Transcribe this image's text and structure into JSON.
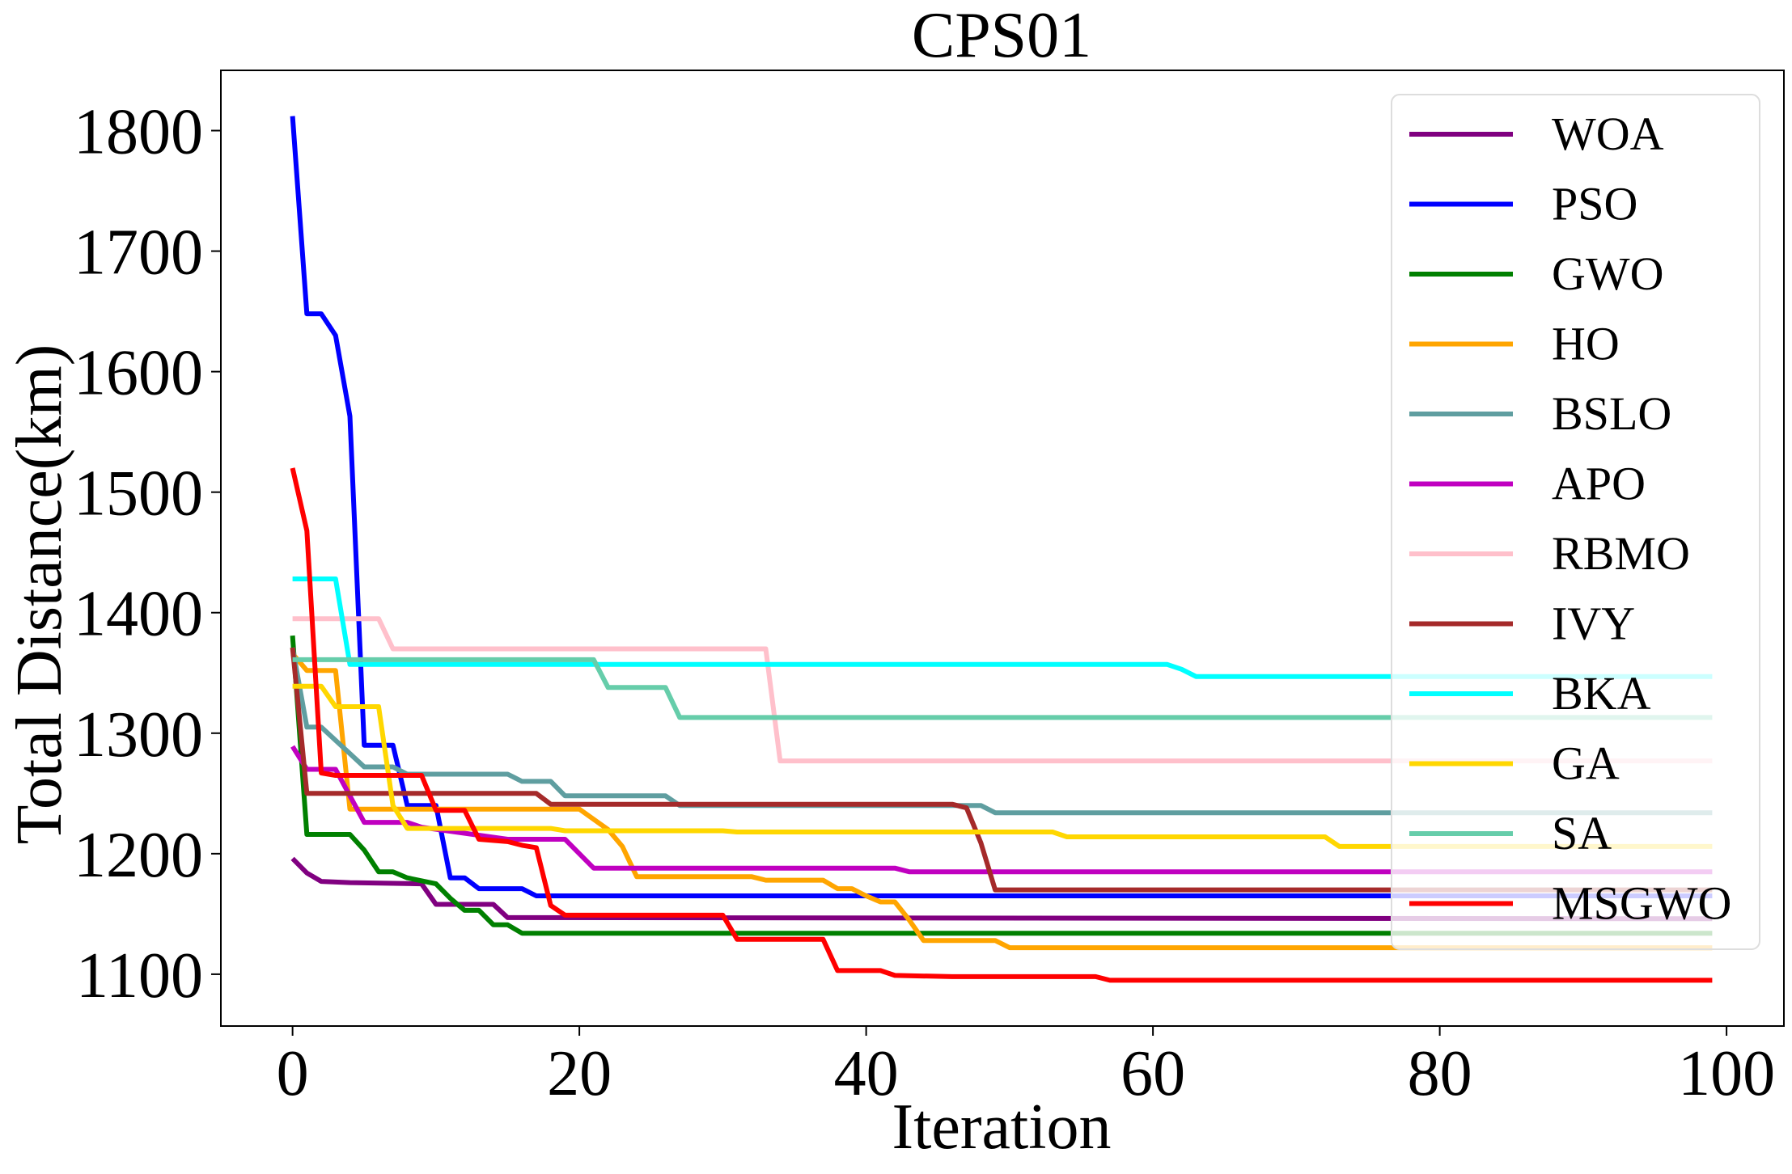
{
  "chart_data": {
    "type": "line",
    "title": "CPS01",
    "xlabel": "Iteration",
    "ylabel": "Total Distance(km)",
    "xlim": [
      -5,
      104
    ],
    "ylim": [
      1057,
      1850
    ],
    "xticks": [
      0,
      20,
      40,
      60,
      80,
      100
    ],
    "yticks": [
      1100,
      1200,
      1300,
      1400,
      1500,
      1600,
      1700,
      1800
    ],
    "grid": false,
    "legend_position": "top-right",
    "series": [
      {
        "name": "WOA",
        "color": "#800080",
        "points": [
          [
            0,
            1196
          ],
          [
            1,
            1184
          ],
          [
            2,
            1177
          ],
          [
            4,
            1176
          ],
          [
            9,
            1175
          ],
          [
            10,
            1158
          ],
          [
            14,
            1158
          ],
          [
            15,
            1147
          ],
          [
            99,
            1146
          ]
        ]
      },
      {
        "name": "PSO",
        "color": "#0000ff",
        "points": [
          [
            0,
            1812
          ],
          [
            1,
            1648
          ],
          [
            2,
            1648
          ],
          [
            3,
            1630
          ],
          [
            4,
            1563
          ],
          [
            5,
            1290
          ],
          [
            7,
            1290
          ],
          [
            8,
            1240
          ],
          [
            10,
            1240
          ],
          [
            11,
            1180
          ],
          [
            12,
            1180
          ],
          [
            13,
            1171
          ],
          [
            16,
            1171
          ],
          [
            17,
            1165
          ],
          [
            99,
            1165
          ]
        ]
      },
      {
        "name": "GWO",
        "color": "#008000",
        "points": [
          [
            0,
            1381
          ],
          [
            1,
            1216
          ],
          [
            4,
            1216
          ],
          [
            5,
            1203
          ],
          [
            6,
            1185
          ],
          [
            7,
            1185
          ],
          [
            8,
            1180
          ],
          [
            10,
            1175
          ],
          [
            11,
            1163
          ],
          [
            12,
            1153
          ],
          [
            13,
            1153
          ],
          [
            14,
            1141
          ],
          [
            15,
            1141
          ],
          [
            16,
            1134
          ],
          [
            99,
            1134
          ]
        ]
      },
      {
        "name": "HO",
        "color": "#ffa500",
        "points": [
          [
            0,
            1366
          ],
          [
            1,
            1352
          ],
          [
            3,
            1352
          ],
          [
            4,
            1237
          ],
          [
            20,
            1237
          ],
          [
            22,
            1220
          ],
          [
            23,
            1206
          ],
          [
            24,
            1181
          ],
          [
            32,
            1181
          ],
          [
            33,
            1178
          ],
          [
            37,
            1178
          ],
          [
            38,
            1171
          ],
          [
            39,
            1171
          ],
          [
            40,
            1165
          ],
          [
            41,
            1160
          ],
          [
            42,
            1160
          ],
          [
            43,
            1145
          ],
          [
            44,
            1128
          ],
          [
            49,
            1128
          ],
          [
            50,
            1122
          ],
          [
            99,
            1122
          ]
        ]
      },
      {
        "name": "BSLO",
        "color": "#5f9ea0",
        "points": [
          [
            0,
            1371
          ],
          [
            1,
            1305
          ],
          [
            2,
            1305
          ],
          [
            4,
            1283
          ],
          [
            5,
            1272
          ],
          [
            7,
            1272
          ],
          [
            8,
            1266
          ],
          [
            15,
            1266
          ],
          [
            16,
            1260
          ],
          [
            18,
            1260
          ],
          [
            19,
            1248
          ],
          [
            26,
            1248
          ],
          [
            27,
            1240
          ],
          [
            48,
            1240
          ],
          [
            49,
            1234
          ],
          [
            99,
            1234
          ]
        ]
      },
      {
        "name": "APO",
        "color": "#c000c0",
        "points": [
          [
            0,
            1289
          ],
          [
            1,
            1270
          ],
          [
            3,
            1270
          ],
          [
            4,
            1248
          ],
          [
            5,
            1226
          ],
          [
            7,
            1226
          ],
          [
            8,
            1226
          ],
          [
            9,
            1222
          ],
          [
            15,
            1212
          ],
          [
            19,
            1212
          ],
          [
            21,
            1188
          ],
          [
            42,
            1188
          ],
          [
            43,
            1185
          ],
          [
            99,
            1185
          ]
        ]
      },
      {
        "name": "RBMO",
        "color": "#ffc0cb",
        "points": [
          [
            0,
            1395
          ],
          [
            6,
            1395
          ],
          [
            7,
            1370
          ],
          [
            33,
            1370
          ],
          [
            34,
            1277
          ],
          [
            99,
            1277
          ]
        ]
      },
      {
        "name": "IVY",
        "color": "#a52a2a",
        "points": [
          [
            0,
            1371
          ],
          [
            1,
            1250
          ],
          [
            17,
            1250
          ],
          [
            18,
            1241
          ],
          [
            46,
            1241
          ],
          [
            47,
            1238
          ],
          [
            48,
            1209
          ],
          [
            49,
            1170
          ],
          [
            99,
            1170
          ]
        ]
      },
      {
        "name": "BKA",
        "color": "#00ffff",
        "points": [
          [
            0,
            1428
          ],
          [
            3,
            1428
          ],
          [
            4,
            1357
          ],
          [
            61,
            1357
          ],
          [
            62,
            1353
          ],
          [
            63,
            1347
          ],
          [
            99,
            1347
          ]
        ]
      },
      {
        "name": "GA",
        "color": "#ffd700",
        "points": [
          [
            0,
            1339
          ],
          [
            2,
            1339
          ],
          [
            3,
            1322
          ],
          [
            6,
            1322
          ],
          [
            7,
            1240
          ],
          [
            8,
            1221
          ],
          [
            18,
            1221
          ],
          [
            19,
            1219
          ],
          [
            30,
            1219
          ],
          [
            31,
            1218
          ],
          [
            53,
            1218
          ],
          [
            54,
            1214
          ],
          [
            72,
            1214
          ],
          [
            73,
            1206
          ],
          [
            99,
            1206
          ]
        ]
      },
      {
        "name": "SA",
        "color": "#66cdaa",
        "points": [
          [
            0,
            1361
          ],
          [
            21,
            1361
          ],
          [
            22,
            1338
          ],
          [
            26,
            1338
          ],
          [
            27,
            1313
          ],
          [
            99,
            1313
          ]
        ]
      },
      {
        "name": "MSGWO",
        "color": "#ff0000",
        "points": [
          [
            0,
            1520
          ],
          [
            1,
            1468
          ],
          [
            2,
            1267
          ],
          [
            3,
            1265
          ],
          [
            9,
            1265
          ],
          [
            10,
            1236
          ],
          [
            12,
            1236
          ],
          [
            13,
            1212
          ],
          [
            15,
            1210
          ],
          [
            16,
            1207
          ],
          [
            17,
            1205
          ],
          [
            18,
            1157
          ],
          [
            19,
            1149
          ],
          [
            30,
            1149
          ],
          [
            31,
            1129
          ],
          [
            37,
            1129
          ],
          [
            38,
            1103
          ],
          [
            41,
            1103
          ],
          [
            42,
            1099
          ],
          [
            46,
            1098
          ],
          [
            56,
            1098
          ],
          [
            57,
            1095
          ],
          [
            99,
            1095
          ]
        ]
      }
    ]
  }
}
